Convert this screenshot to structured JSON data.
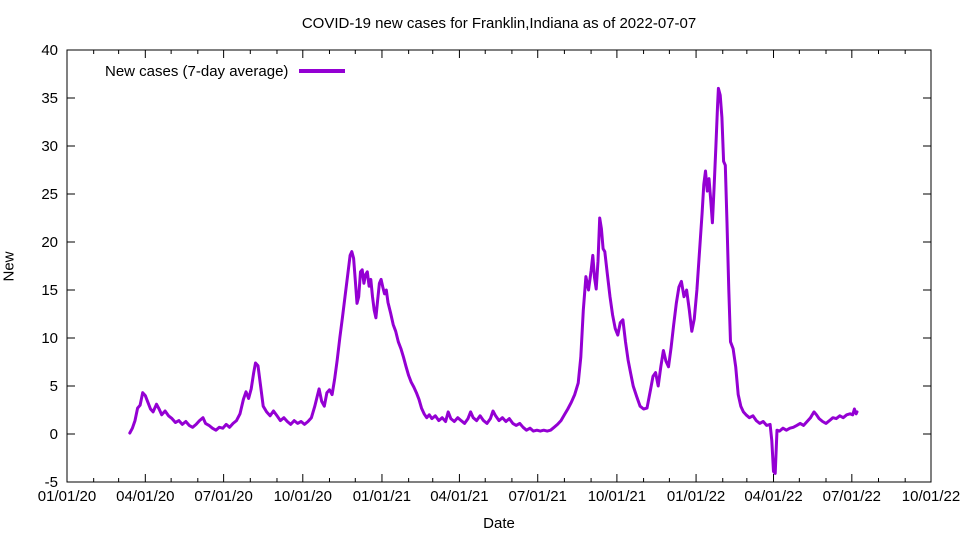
{
  "chart_data": {
    "type": "line",
    "title": "COVID-19 new cases for Franklin,Indiana as of 2022-07-07",
    "xlabel": "Date",
    "ylabel": "New",
    "grid": false,
    "legend_position": "top-left",
    "xlim": [
      "2020-01-01",
      "2022-10-01"
    ],
    "ylim": [
      -5,
      40
    ],
    "y_tick_step": 5,
    "y_ticks": [
      -5,
      0,
      5,
      10,
      15,
      20,
      25,
      30,
      35,
      40
    ],
    "x_ticks": [
      {
        "date": "2020-01-01",
        "label": "01/01/20"
      },
      {
        "date": "2020-04-01",
        "label": "04/01/20"
      },
      {
        "date": "2020-07-01",
        "label": "07/01/20"
      },
      {
        "date": "2020-10-01",
        "label": "10/01/20"
      },
      {
        "date": "2021-01-01",
        "label": "01/01/21"
      },
      {
        "date": "2021-04-01",
        "label": "04/01/21"
      },
      {
        "date": "2021-07-01",
        "label": "07/01/21"
      },
      {
        "date": "2021-10-01",
        "label": "10/01/21"
      },
      {
        "date": "2022-01-01",
        "label": "01/01/22"
      },
      {
        "date": "2022-04-01",
        "label": "04/01/22"
      },
      {
        "date": "2022-07-01",
        "label": "07/01/22"
      },
      {
        "date": "2022-10-01",
        "label": "10/01/22"
      }
    ],
    "series": [
      {
        "name": "New cases (7-day average)",
        "color": "#9400d3",
        "points": [
          [
            "2020-03-14",
            0.1
          ],
          [
            "2020-03-17",
            0.6
          ],
          [
            "2020-03-20",
            1.4
          ],
          [
            "2020-03-23",
            2.7
          ],
          [
            "2020-03-26",
            3.0
          ],
          [
            "2020-03-29",
            4.3
          ],
          [
            "2020-04-01",
            4.0
          ],
          [
            "2020-04-04",
            3.3
          ],
          [
            "2020-04-07",
            2.6
          ],
          [
            "2020-04-10",
            2.3
          ],
          [
            "2020-04-14",
            3.1
          ],
          [
            "2020-04-17",
            2.6
          ],
          [
            "2020-04-20",
            2.0
          ],
          [
            "2020-04-24",
            2.4
          ],
          [
            "2020-04-28",
            1.9
          ],
          [
            "2020-05-02",
            1.6
          ],
          [
            "2020-05-06",
            1.2
          ],
          [
            "2020-05-10",
            1.4
          ],
          [
            "2020-05-14",
            1.0
          ],
          [
            "2020-05-18",
            1.3
          ],
          [
            "2020-05-22",
            0.9
          ],
          [
            "2020-05-26",
            0.7
          ],
          [
            "2020-05-30",
            1.0
          ],
          [
            "2020-06-03",
            1.4
          ],
          [
            "2020-06-07",
            1.7
          ],
          [
            "2020-06-10",
            1.1
          ],
          [
            "2020-06-14",
            0.9
          ],
          [
            "2020-06-18",
            0.6
          ],
          [
            "2020-06-22",
            0.4
          ],
          [
            "2020-06-26",
            0.7
          ],
          [
            "2020-06-30",
            0.6
          ],
          [
            "2020-07-04",
            1.0
          ],
          [
            "2020-07-08",
            0.7
          ],
          [
            "2020-07-12",
            1.1
          ],
          [
            "2020-07-16",
            1.4
          ],
          [
            "2020-07-20",
            2.1
          ],
          [
            "2020-07-24",
            3.6
          ],
          [
            "2020-07-27",
            4.4
          ],
          [
            "2020-07-30",
            3.7
          ],
          [
            "2020-08-02",
            4.7
          ],
          [
            "2020-08-05",
            6.4
          ],
          [
            "2020-08-07",
            7.4
          ],
          [
            "2020-08-10",
            7.1
          ],
          [
            "2020-08-13",
            5.0
          ],
          [
            "2020-08-16",
            2.9
          ],
          [
            "2020-08-20",
            2.3
          ],
          [
            "2020-08-24",
            1.9
          ],
          [
            "2020-08-28",
            2.4
          ],
          [
            "2020-09-01",
            1.9
          ],
          [
            "2020-09-05",
            1.4
          ],
          [
            "2020-09-09",
            1.7
          ],
          [
            "2020-09-13",
            1.3
          ],
          [
            "2020-09-17",
            1.0
          ],
          [
            "2020-09-21",
            1.4
          ],
          [
            "2020-09-25",
            1.1
          ],
          [
            "2020-09-29",
            1.3
          ],
          [
            "2020-10-03",
            1.0
          ],
          [
            "2020-10-07",
            1.3
          ],
          [
            "2020-10-11",
            1.7
          ],
          [
            "2020-10-15",
            2.9
          ],
          [
            "2020-10-18",
            4.0
          ],
          [
            "2020-10-20",
            4.7
          ],
          [
            "2020-10-23",
            3.4
          ],
          [
            "2020-10-26",
            2.9
          ],
          [
            "2020-10-29",
            4.3
          ],
          [
            "2020-11-01",
            4.6
          ],
          [
            "2020-11-04",
            4.1
          ],
          [
            "2020-11-07",
            5.7
          ],
          [
            "2020-11-10",
            7.7
          ],
          [
            "2020-11-13",
            10.0
          ],
          [
            "2020-11-16",
            12.1
          ],
          [
            "2020-11-19",
            14.3
          ],
          [
            "2020-11-22",
            16.4
          ],
          [
            "2020-11-25",
            18.6
          ],
          [
            "2020-11-27",
            19.0
          ],
          [
            "2020-11-29",
            18.3
          ],
          [
            "2020-12-01",
            16.0
          ],
          [
            "2020-12-03",
            13.6
          ],
          [
            "2020-12-05",
            14.3
          ],
          [
            "2020-12-07",
            16.9
          ],
          [
            "2020-12-09",
            17.1
          ],
          [
            "2020-12-11",
            15.7
          ],
          [
            "2020-12-13",
            16.6
          ],
          [
            "2020-12-15",
            16.9
          ],
          [
            "2020-12-17",
            15.4
          ],
          [
            "2020-12-19",
            16.1
          ],
          [
            "2020-12-21",
            14.3
          ],
          [
            "2020-12-23",
            12.9
          ],
          [
            "2020-12-25",
            12.1
          ],
          [
            "2020-12-27",
            14.0
          ],
          [
            "2020-12-29",
            15.7
          ],
          [
            "2020-12-31",
            16.1
          ],
          [
            "2021-01-02",
            15.3
          ],
          [
            "2021-01-04",
            14.6
          ],
          [
            "2021-01-06",
            15.0
          ],
          [
            "2021-01-08",
            13.7
          ],
          [
            "2021-01-11",
            12.6
          ],
          [
            "2021-01-14",
            11.4
          ],
          [
            "2021-01-17",
            10.7
          ],
          [
            "2021-01-20",
            9.6
          ],
          [
            "2021-01-23",
            8.9
          ],
          [
            "2021-01-26",
            8.0
          ],
          [
            "2021-01-29",
            7.0
          ],
          [
            "2021-02-01",
            6.1
          ],
          [
            "2021-02-04",
            5.4
          ],
          [
            "2021-02-07",
            4.9
          ],
          [
            "2021-02-10",
            4.3
          ],
          [
            "2021-02-13",
            3.6
          ],
          [
            "2021-02-16",
            2.7
          ],
          [
            "2021-02-19",
            2.1
          ],
          [
            "2021-02-22",
            1.7
          ],
          [
            "2021-02-25",
            2.0
          ],
          [
            "2021-02-28",
            1.6
          ],
          [
            "2021-03-04",
            1.9
          ],
          [
            "2021-03-08",
            1.4
          ],
          [
            "2021-03-12",
            1.7
          ],
          [
            "2021-03-16",
            1.3
          ],
          [
            "2021-03-19",
            2.3
          ],
          [
            "2021-03-22",
            1.6
          ],
          [
            "2021-03-26",
            1.3
          ],
          [
            "2021-03-30",
            1.7
          ],
          [
            "2021-04-03",
            1.4
          ],
          [
            "2021-04-07",
            1.1
          ],
          [
            "2021-04-11",
            1.6
          ],
          [
            "2021-04-14",
            2.3
          ],
          [
            "2021-04-17",
            1.7
          ],
          [
            "2021-04-21",
            1.4
          ],
          [
            "2021-04-25",
            1.9
          ],
          [
            "2021-04-29",
            1.4
          ],
          [
            "2021-05-03",
            1.1
          ],
          [
            "2021-05-07",
            1.6
          ],
          [
            "2021-05-10",
            2.4
          ],
          [
            "2021-05-13",
            1.9
          ],
          [
            "2021-05-17",
            1.4
          ],
          [
            "2021-05-21",
            1.7
          ],
          [
            "2021-05-25",
            1.3
          ],
          [
            "2021-05-29",
            1.6
          ],
          [
            "2021-06-02",
            1.1
          ],
          [
            "2021-06-06",
            0.9
          ],
          [
            "2021-06-10",
            1.1
          ],
          [
            "2021-06-14",
            0.7
          ],
          [
            "2021-06-18",
            0.4
          ],
          [
            "2021-06-22",
            0.6
          ],
          [
            "2021-06-26",
            0.3
          ],
          [
            "2021-06-30",
            0.4
          ],
          [
            "2021-07-04",
            0.3
          ],
          [
            "2021-07-08",
            0.4
          ],
          [
            "2021-07-12",
            0.3
          ],
          [
            "2021-07-16",
            0.4
          ],
          [
            "2021-07-20",
            0.7
          ],
          [
            "2021-07-24",
            1.0
          ],
          [
            "2021-07-28",
            1.4
          ],
          [
            "2021-08-01",
            2.0
          ],
          [
            "2021-08-05",
            2.6
          ],
          [
            "2021-08-09",
            3.3
          ],
          [
            "2021-08-13",
            4.1
          ],
          [
            "2021-08-17",
            5.3
          ],
          [
            "2021-08-20",
            8.0
          ],
          [
            "2021-08-23",
            12.9
          ],
          [
            "2021-08-26",
            16.4
          ],
          [
            "2021-08-29",
            15.0
          ],
          [
            "2021-09-01",
            17.0
          ],
          [
            "2021-09-03",
            18.6
          ],
          [
            "2021-09-05",
            16.3
          ],
          [
            "2021-09-07",
            15.1
          ],
          [
            "2021-09-09",
            18.0
          ],
          [
            "2021-09-11",
            22.5
          ],
          [
            "2021-09-13",
            21.4
          ],
          [
            "2021-09-15",
            19.3
          ],
          [
            "2021-09-17",
            19.0
          ],
          [
            "2021-09-20",
            16.6
          ],
          [
            "2021-09-23",
            14.3
          ],
          [
            "2021-09-26",
            12.4
          ],
          [
            "2021-09-29",
            11.0
          ],
          [
            "2021-10-02",
            10.3
          ],
          [
            "2021-10-05",
            11.6
          ],
          [
            "2021-10-08",
            11.9
          ],
          [
            "2021-10-11",
            9.6
          ],
          [
            "2021-10-14",
            7.7
          ],
          [
            "2021-10-17",
            6.3
          ],
          [
            "2021-10-20",
            5.0
          ],
          [
            "2021-10-24",
            3.9
          ],
          [
            "2021-10-28",
            2.9
          ],
          [
            "2021-11-01",
            2.6
          ],
          [
            "2021-11-05",
            2.7
          ],
          [
            "2021-11-09",
            4.6
          ],
          [
            "2021-11-12",
            6.0
          ],
          [
            "2021-11-15",
            6.4
          ],
          [
            "2021-11-18",
            5.0
          ],
          [
            "2021-11-21",
            7.0
          ],
          [
            "2021-11-24",
            8.7
          ],
          [
            "2021-11-27",
            7.6
          ],
          [
            "2021-11-30",
            7.0
          ],
          [
            "2021-12-03",
            9.0
          ],
          [
            "2021-12-06",
            11.4
          ],
          [
            "2021-12-09",
            13.6
          ],
          [
            "2021-12-12",
            15.3
          ],
          [
            "2021-12-15",
            15.9
          ],
          [
            "2021-12-18",
            14.3
          ],
          [
            "2021-12-21",
            15.0
          ],
          [
            "2021-12-24",
            13.0
          ],
          [
            "2021-12-27",
            10.7
          ],
          [
            "2021-12-30",
            12.0
          ],
          [
            "2022-01-02",
            15.0
          ],
          [
            "2022-01-05",
            19.0
          ],
          [
            "2022-01-08",
            23.0
          ],
          [
            "2022-01-10",
            26.0
          ],
          [
            "2022-01-12",
            27.4
          ],
          [
            "2022-01-14",
            25.3
          ],
          [
            "2022-01-16",
            26.6
          ],
          [
            "2022-01-18",
            24.4
          ],
          [
            "2022-01-20",
            22.0
          ],
          [
            "2022-01-22",
            25.7
          ],
          [
            "2022-01-24",
            30.0
          ],
          [
            "2022-01-26",
            34.3
          ],
          [
            "2022-01-27",
            36.0
          ],
          [
            "2022-01-29",
            35.3
          ],
          [
            "2022-01-31",
            33.0
          ],
          [
            "2022-02-02",
            28.4
          ],
          [
            "2022-02-04",
            28.0
          ],
          [
            "2022-02-06",
            22.0
          ],
          [
            "2022-02-08",
            15.0
          ],
          [
            "2022-02-10",
            9.6
          ],
          [
            "2022-02-13",
            8.9
          ],
          [
            "2022-02-16",
            7.0
          ],
          [
            "2022-02-19",
            4.1
          ],
          [
            "2022-02-22",
            2.9
          ],
          [
            "2022-02-25",
            2.3
          ],
          [
            "2022-02-28",
            2.0
          ],
          [
            "2022-03-04",
            1.7
          ],
          [
            "2022-03-08",
            1.9
          ],
          [
            "2022-03-12",
            1.4
          ],
          [
            "2022-03-16",
            1.1
          ],
          [
            "2022-03-20",
            1.3
          ],
          [
            "2022-03-24",
            0.9
          ],
          [
            "2022-03-28",
            1.0
          ],
          [
            "2022-03-30",
            -0.7
          ],
          [
            "2022-04-01",
            -3.9
          ],
          [
            "2022-04-03",
            -4.1
          ],
          [
            "2022-04-05",
            0.4
          ],
          [
            "2022-04-08",
            0.3
          ],
          [
            "2022-04-12",
            0.6
          ],
          [
            "2022-04-16",
            0.4
          ],
          [
            "2022-04-20",
            0.6
          ],
          [
            "2022-04-24",
            0.7
          ],
          [
            "2022-04-28",
            0.9
          ],
          [
            "2022-05-02",
            1.1
          ],
          [
            "2022-05-06",
            0.9
          ],
          [
            "2022-05-10",
            1.3
          ],
          [
            "2022-05-14",
            1.7
          ],
          [
            "2022-05-18",
            2.3
          ],
          [
            "2022-05-21",
            2.0
          ],
          [
            "2022-05-24",
            1.6
          ],
          [
            "2022-05-28",
            1.3
          ],
          [
            "2022-06-01",
            1.1
          ],
          [
            "2022-06-05",
            1.4
          ],
          [
            "2022-06-09",
            1.7
          ],
          [
            "2022-06-13",
            1.6
          ],
          [
            "2022-06-17",
            1.9
          ],
          [
            "2022-06-21",
            1.7
          ],
          [
            "2022-06-25",
            2.0
          ],
          [
            "2022-06-29",
            2.1
          ],
          [
            "2022-07-02",
            2.0
          ],
          [
            "2022-07-04",
            2.6
          ],
          [
            "2022-07-06",
            2.1
          ],
          [
            "2022-07-07",
            2.3
          ]
        ]
      }
    ]
  }
}
